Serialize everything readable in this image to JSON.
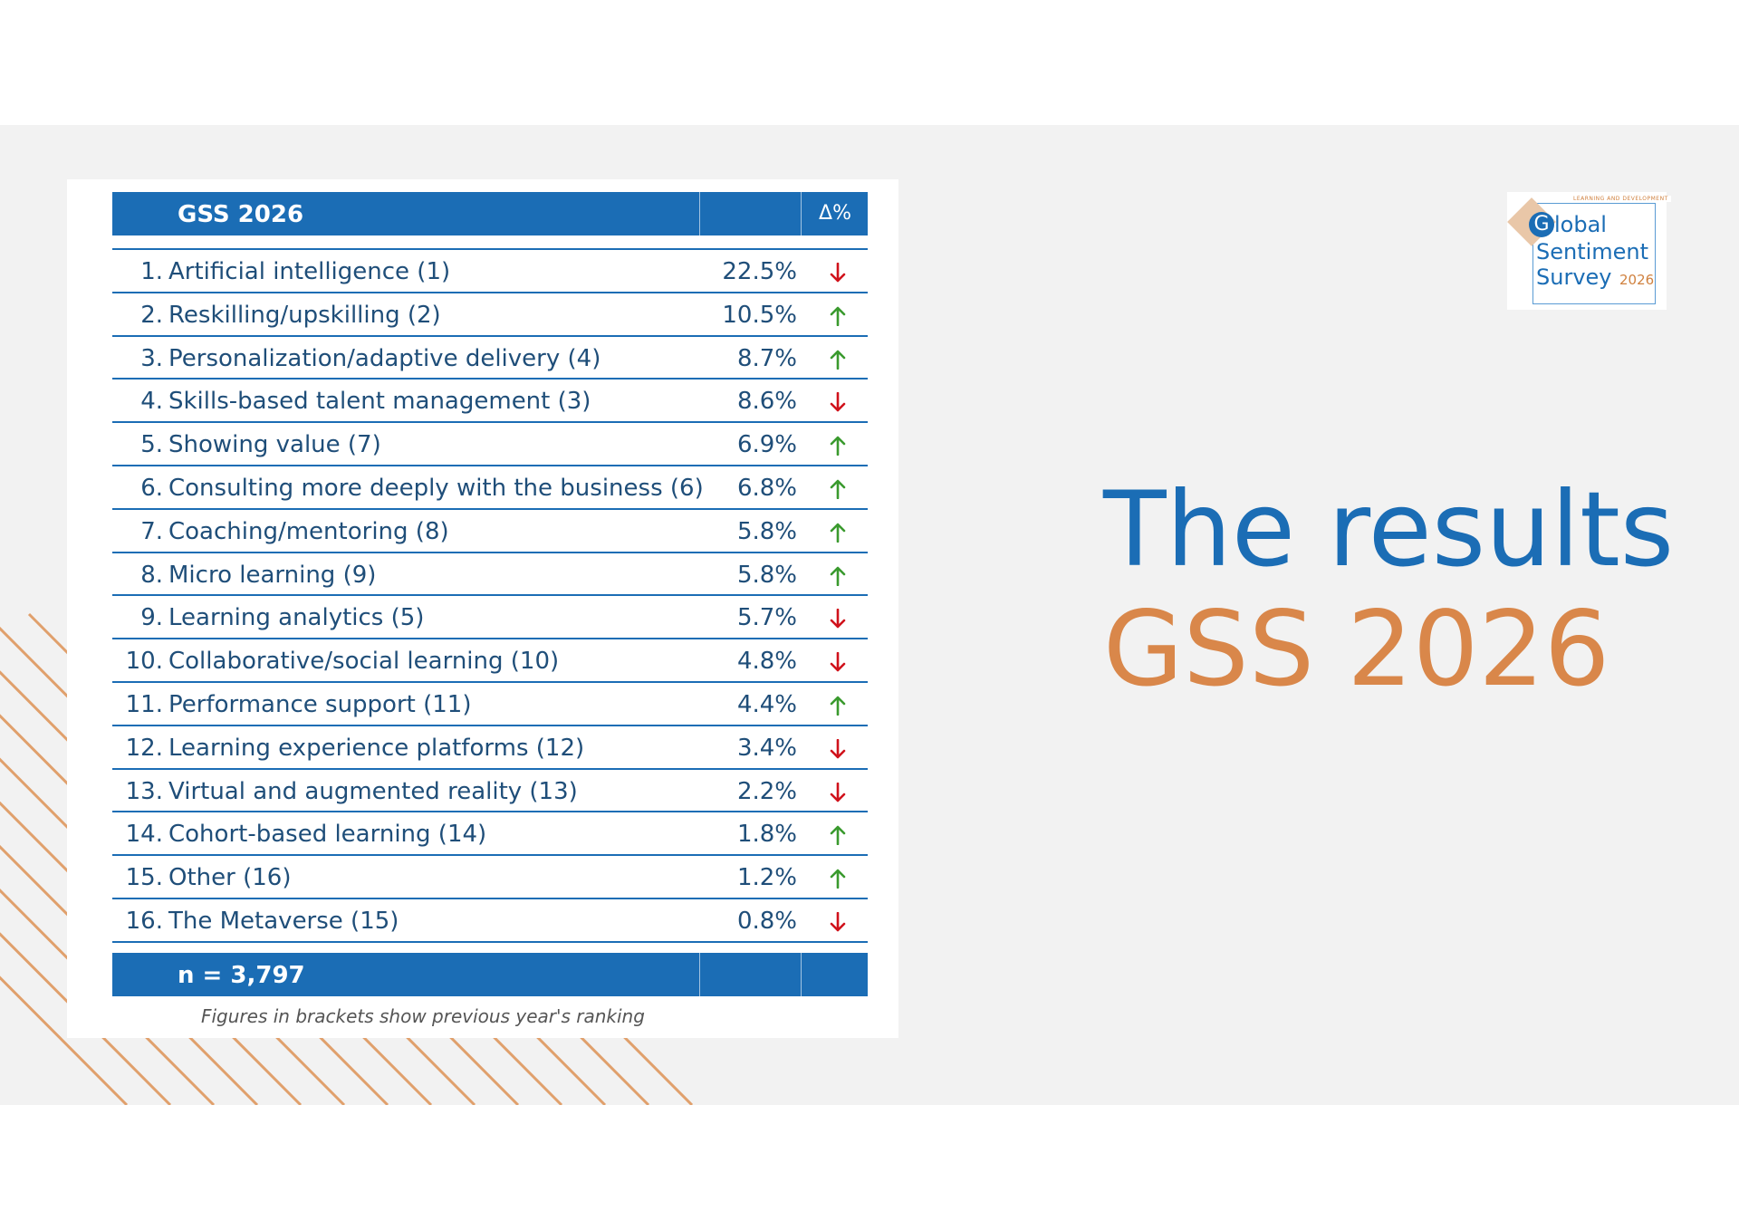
{
  "table": {
    "header_title": "GSS 2026",
    "header_delta": "Δ%",
    "rows": [
      {
        "num": "1.",
        "label": "Artificial intelligence (1)",
        "pct": "22.5%",
        "trend": "down"
      },
      {
        "num": "2.",
        "label": "Reskilling/upskilling (2)",
        "pct": "10.5%",
        "trend": "up"
      },
      {
        "num": "3.",
        "label": "Personalization/adaptive delivery (4)",
        "pct": "8.7%",
        "trend": "up"
      },
      {
        "num": "4.",
        "label": "Skills-based talent management (3)",
        "pct": "8.6%",
        "trend": "down"
      },
      {
        "num": "5.",
        "label": "Showing value (7)",
        "pct": "6.9%",
        "trend": "up"
      },
      {
        "num": "6.",
        "label": "Consulting more deeply with the business (6)",
        "pct": "6.8%",
        "trend": "up"
      },
      {
        "num": "7.",
        "label": "Coaching/mentoring (8)",
        "pct": "5.8%",
        "trend": "up"
      },
      {
        "num": "8.",
        "label": "Micro learning (9)",
        "pct": "5.8%",
        "trend": "up"
      },
      {
        "num": "9.",
        "label": "Learning analytics (5)",
        "pct": "5.7%",
        "trend": "down"
      },
      {
        "num": "10.",
        "label": "Collaborative/social learning (10)",
        "pct": "4.8%",
        "trend": "down"
      },
      {
        "num": "11.",
        "label": "Performance support (11)",
        "pct": "4.4%",
        "trend": "up"
      },
      {
        "num": "12.",
        "label": "Learning experience platforms (12)",
        "pct": "3.4%",
        "trend": "down"
      },
      {
        "num": "13.",
        "label": "Virtual and augmented reality (13)",
        "pct": "2.2%",
        "trend": "down"
      },
      {
        "num": "14.",
        "label": "Cohort-based learning (14)",
        "pct": "1.8%",
        "trend": "up"
      },
      {
        "num": "15.",
        "label": "Other (16)",
        "pct": "1.2%",
        "trend": "up"
      },
      {
        "num": "16.",
        "label": "The Metaverse (15)",
        "pct": "0.8%",
        "trend": "down"
      }
    ],
    "footer_n": "n = 3,797",
    "footnote": "Figures in brackets show previous year's ranking"
  },
  "logo": {
    "small_caption": "LEARNING AND DEVELOPMENT",
    "g_letter": "G",
    "word_1": "lobal",
    "word_2": "Sentiment",
    "word_3": "Survey",
    "year": "2026"
  },
  "title": {
    "line_1": "The results",
    "line_2": "GSS 2026"
  },
  "colors": {
    "primary_blue": "#1b6db5",
    "accent_orange": "#d9874a",
    "arrow_up": "#3a9a2e",
    "arrow_down": "#d0121b",
    "background": "#f2f2f2"
  }
}
